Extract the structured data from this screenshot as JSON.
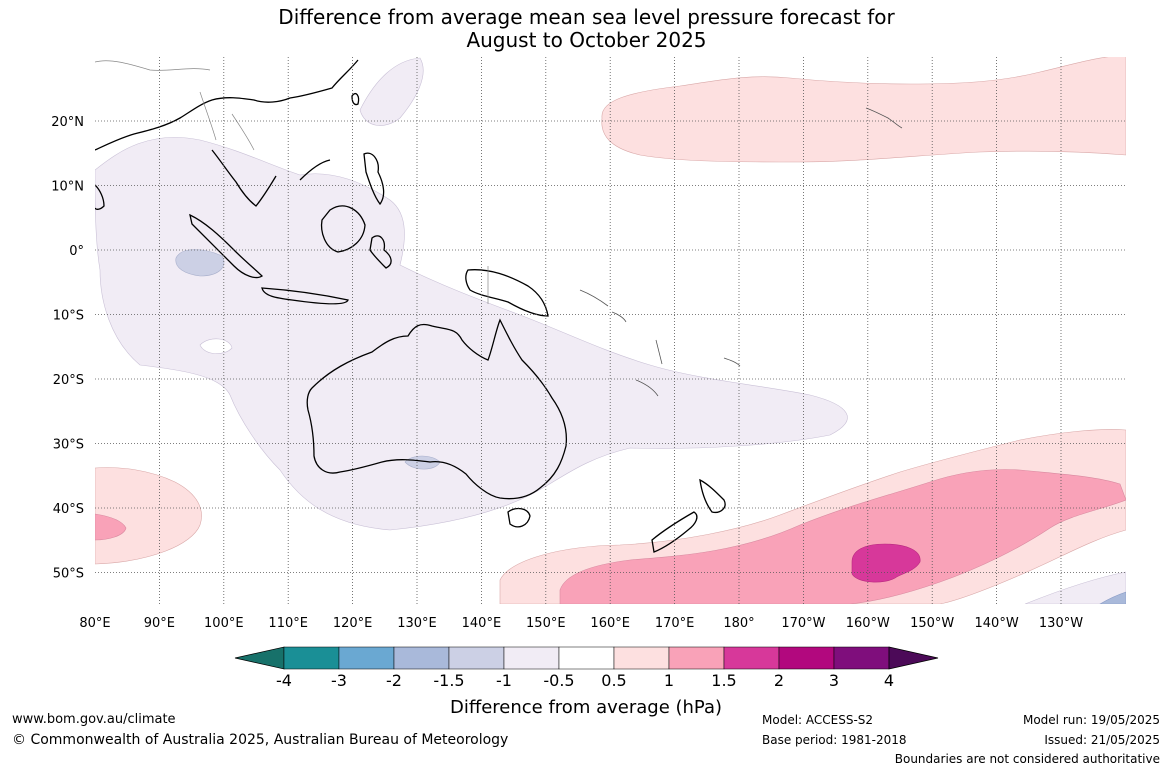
{
  "title": {
    "line1": "Difference from average mean sea level pressure forecast for",
    "line2": "August to October 2025"
  },
  "map": {
    "lon_labels": [
      "80°E",
      "90°E",
      "100°E",
      "110°E",
      "120°E",
      "130°E",
      "140°E",
      "150°E",
      "160°E",
      "170°E",
      "180°",
      "170°W",
      "160°W",
      "150°W",
      "140°W",
      "130°W"
    ],
    "lat_labels": [
      "20°N",
      "10°N",
      "0°",
      "10°S",
      "20°S",
      "30°S",
      "40°S",
      "50°S"
    ]
  },
  "colorbar": {
    "ticks": [
      "-4",
      "-3",
      "-2",
      "-1.5",
      "-1",
      "-0.5",
      "0.5",
      "1",
      "1.5",
      "2",
      "3",
      "4"
    ],
    "colors": [
      "#17716a",
      "#1a8f96",
      "#6aa8d2",
      "#a9b9da",
      "#ccd0e5",
      "#f1ecf5",
      "#ffffff",
      "#fde0e0",
      "#f9a2b8",
      "#d7389a",
      "#b2087e",
      "#7f0e7c",
      "#4c0a58"
    ],
    "label": "Difference from average (hPa)"
  },
  "footer": {
    "url": "www.bom.gov.au/climate",
    "copyright": "© Commonwealth of Australia 2025, Australian Bureau of Meteorology",
    "model": "Model: ACCESS-S2",
    "base_period": "Base period: 1981-2018",
    "model_run": "Model run: 19/05/2025",
    "issued": "Issued: 21/05/2025",
    "disclaimer": "Boundaries are not considered authoritative"
  }
}
